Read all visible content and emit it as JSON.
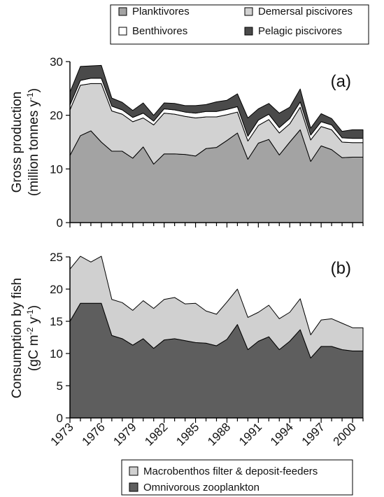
{
  "chart_data": [
    {
      "type": "area",
      "stacked": true,
      "panel_label": "(a)",
      "ylabel_line1": "Gross production",
      "ylabel_line2": "(million tonnes y",
      "ylabel_sup": "-1",
      "ylabel_end": ")",
      "ylim": [
        0,
        30
      ],
      "yticks": [
        "0",
        "10",
        "20",
        "30"
      ],
      "x": [
        1973,
        1974,
        1975,
        1976,
        1977,
        1978,
        1979,
        1980,
        1981,
        1982,
        1983,
        1984,
        1985,
        1986,
        1987,
        1988,
        1989,
        1990,
        1991,
        1992,
        1993,
        1994,
        1995,
        1996,
        1997,
        1998,
        1999,
        2000,
        2001
      ],
      "legend": {
        "position": "top",
        "entries": [
          "Planktivores",
          "Demersal piscivores",
          "Benthivores",
          "Pelagic piscivores"
        ]
      },
      "series": [
        {
          "name": "Planktivores",
          "color": "#a3a3a3",
          "values": [
            12.5,
            16.2,
            17.1,
            15.0,
            13.3,
            13.3,
            12.0,
            14.1,
            10.9,
            12.8,
            12.8,
            12.7,
            12.4,
            13.8,
            14.0,
            15.3,
            16.7,
            11.8,
            14.8,
            15.5,
            12.6,
            15.0,
            17.3,
            11.4,
            14.3,
            13.6,
            12.1,
            12.2,
            12.2
          ]
        },
        {
          "name": "Demersal piscivores",
          "color": "#d2d2d2",
          "values": [
            8.5,
            9.4,
            8.8,
            10.9,
            7.5,
            6.9,
            6.8,
            5.4,
            7.3,
            7.6,
            7.4,
            7.1,
            7.1,
            5.9,
            5.7,
            4.8,
            3.9,
            3.4,
            3.3,
            3.7,
            4.1,
            3.4,
            4.2,
            4.0,
            3.6,
            3.7,
            2.9,
            2.7,
            2.7
          ]
        },
        {
          "name": "Benthivores",
          "color": "#ffffff",
          "values": [
            0.9,
            0.9,
            1.0,
            1.0,
            0.9,
            0.8,
            0.8,
            0.9,
            0.7,
            0.8,
            0.8,
            0.8,
            0.9,
            1.0,
            1.0,
            1.0,
            1.0,
            0.9,
            1.0,
            1.0,
            1.0,
            1.0,
            1.0,
            0.9,
            0.9,
            0.9,
            0.8,
            0.8,
            0.8
          ]
        },
        {
          "name": "Pelagic piscivores",
          "color": "#4a4a4a",
          "values": [
            2.4,
            2.6,
            2.3,
            2.4,
            1.5,
            1.4,
            1.3,
            1.9,
            1.1,
            1.1,
            1.2,
            1.2,
            1.4,
            1.3,
            1.8,
            1.7,
            2.4,
            3.4,
            2.1,
            2.0,
            2.7,
            2.1,
            2.4,
            1.3,
            1.5,
            1.2,
            1.2,
            1.6,
            1.6
          ]
        }
      ]
    },
    {
      "type": "area",
      "stacked": true,
      "panel_label": "(b)",
      "ylabel_line1": "Consumption by fish",
      "ylabel_pre": "(gC m",
      "ylabel_sup1": "-2",
      "ylabel_mid": " y",
      "ylabel_sup2": "-1",
      "ylabel_end": ")",
      "ylim": [
        0,
        25
      ],
      "yticks": [
        "0",
        "5",
        "10",
        "15",
        "20",
        "25"
      ],
      "x": [
        1973,
        1974,
        1975,
        1976,
        1977,
        1978,
        1979,
        1980,
        1981,
        1982,
        1983,
        1984,
        1985,
        1986,
        1987,
        1988,
        1989,
        1990,
        1991,
        1992,
        1993,
        1994,
        1995,
        1996,
        1997,
        1998,
        1999,
        2000,
        2001
      ],
      "xticks": [
        "1973",
        "1976",
        "1979",
        "1982",
        "1985",
        "1988",
        "1991",
        "1994",
        "1997",
        "2000"
      ],
      "legend": {
        "position": "bottom",
        "entries": [
          "Macrobenthos filter & deposit-feeders",
          "Omnivorous zooplankton"
        ]
      },
      "series": [
        {
          "name": "Omnivorous zooplankton",
          "color": "#5e5e5e",
          "values": [
            15.0,
            17.8,
            17.8,
            17.8,
            12.8,
            12.3,
            11.3,
            12.3,
            10.8,
            12.1,
            12.3,
            12.0,
            11.7,
            11.6,
            11.2,
            12.2,
            14.5,
            10.6,
            11.9,
            12.6,
            10.6,
            11.9,
            13.7,
            9.3,
            11.1,
            11.1,
            10.6,
            10.4,
            10.4
          ]
        },
        {
          "name": "Macrobenthos filter & deposit-feeders",
          "color": "#d0d0d0",
          "values": [
            8.1,
            7.3,
            6.4,
            7.3,
            5.6,
            5.6,
            5.4,
            5.9,
            6.2,
            6.3,
            6.4,
            5.7,
            6.1,
            5.0,
            4.9,
            5.8,
            5.5,
            5.0,
            4.5,
            4.9,
            4.8,
            4.5,
            4.8,
            3.6,
            4.1,
            4.3,
            4.1,
            3.6,
            3.6
          ]
        }
      ]
    }
  ]
}
